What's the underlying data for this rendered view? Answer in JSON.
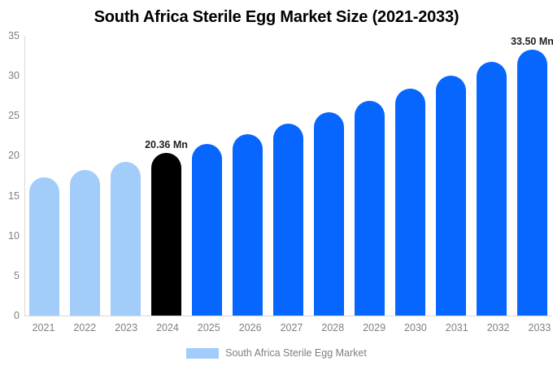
{
  "title": "South Africa Sterile Egg Market Size (2021-2033)",
  "legend": {
    "label": "South Africa Sterile Egg Market",
    "swatch_color": "#a2ccfa"
  },
  "colors": {
    "historical_bar": "#a2ccfa",
    "base_year_bar": "#000000",
    "forecast_bar": "#0666fe",
    "axis_line": "#d9d9d9",
    "axis_text": "#7f7f7f",
    "value_label_text": "#1f1f1f",
    "title_text": "#000000",
    "background": "#ffffff"
  },
  "chart_data": {
    "type": "bar",
    "title": "South Africa Sterile Egg Market Size (2021-2033)",
    "categories": [
      "2021",
      "2022",
      "2023",
      "2024",
      "2025",
      "2026",
      "2027",
      "2028",
      "2029",
      "2030",
      "2031",
      "2032",
      "2033"
    ],
    "values": [
      17.25,
      18.23,
      19.27,
      20.36,
      21.52,
      22.74,
      24.04,
      25.41,
      26.85,
      28.38,
      29.99,
      31.7,
      33.5
    ],
    "unit": "Mn",
    "value_labels": [
      "",
      "",
      "",
      "20.36 Mn",
      "",
      "",
      "",
      "",
      "",
      "",
      "",
      "",
      "33.50 Mn"
    ],
    "bar_colors": [
      "#a2ccfa",
      "#a2ccfa",
      "#a2ccfa",
      "#000000",
      "#0666fe",
      "#0666fe",
      "#0666fe",
      "#0666fe",
      "#0666fe",
      "#0666fe",
      "#0666fe",
      "#0666fe",
      "#0666fe"
    ],
    "xlabel": "",
    "ylabel": "",
    "ylim": [
      0,
      35
    ],
    "yticks": [
      0,
      5,
      10,
      15,
      20,
      25,
      30,
      35
    ],
    "grid": false,
    "legend_position": "bottom",
    "legend_entries": [
      "South Africa Sterile Egg Market"
    ]
  }
}
